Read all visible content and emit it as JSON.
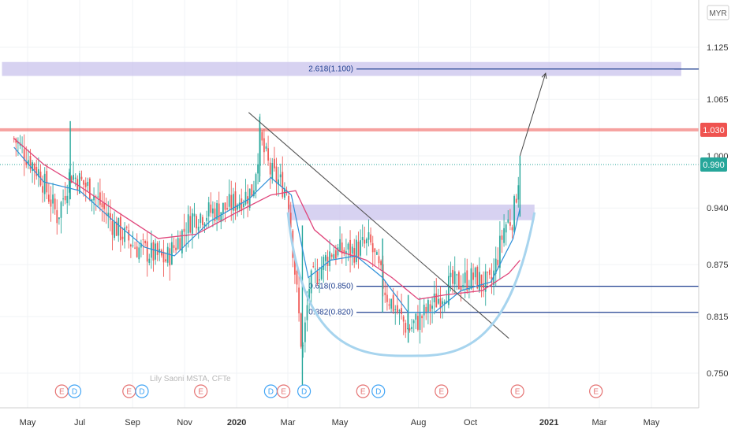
{
  "currency": "MYR",
  "watermark": "Lily Saoni MSTA, CFTe",
  "colors": {
    "up": "#26a69a",
    "down": "#ef5350",
    "ma_fast": "#2e90d9",
    "ma_slow": "#e0457b",
    "resistance": "#ef5350",
    "zone": "#c9c3ec",
    "fib_line": "#1f3f8f",
    "cup": "#a7d4ee",
    "trendline": "#555555",
    "price_badge": "#26a69a",
    "level_badge": "#ef5350"
  },
  "chart_data": {
    "type": "candlestick",
    "y_axis": {
      "ticks": [
        "1.125",
        "1.065",
        "1.000",
        "0.940",
        "0.875",
        "0.815",
        "0.750"
      ],
      "range": [
        0.72,
        1.17
      ]
    },
    "x_axis": {
      "ticks": [
        "May",
        "Jul",
        "Sep",
        "Nov",
        "2020",
        "Mar",
        "May",
        "Aug",
        "Oct",
        "2021",
        "Mar",
        "May"
      ],
      "bold": [
        "2020",
        "2021"
      ]
    },
    "resistance_level": {
      "label": "1.030",
      "value": 1.03
    },
    "last_price": {
      "label": "0.990",
      "value": 0.99
    },
    "fib_levels": [
      {
        "label": "2.618(1.100)",
        "value": 1.1
      },
      {
        "label": "0.618(0.850)",
        "value": 0.85
      },
      {
        "label": "0.382(0.820)",
        "value": 0.82
      }
    ],
    "events": [
      {
        "type": "E",
        "date": "2019-06-10"
      },
      {
        "type": "D",
        "date": "2019-06-25"
      },
      {
        "type": "E",
        "date": "2019-08-28"
      },
      {
        "type": "D",
        "date": "2019-09-12"
      },
      {
        "type": "E",
        "date": "2019-11-20"
      },
      {
        "type": "D",
        "date": "2020-02-10"
      },
      {
        "type": "E",
        "date": "2020-02-25"
      },
      {
        "type": "D",
        "date": "2020-03-20"
      },
      {
        "type": "E",
        "date": "2020-05-28"
      },
      {
        "type": "D",
        "date": "2020-06-15"
      },
      {
        "type": "E",
        "date": "2020-08-28"
      },
      {
        "type": "E",
        "date": "2020-11-25"
      },
      {
        "type": "E",
        "date": "2021-02-25"
      }
    ],
    "close_path": [
      [
        "2019-04-15",
        1.02
      ],
      [
        "2019-05-15",
        0.98
      ],
      [
        "2019-06-05",
        0.93
      ],
      [
        "2019-06-20",
        0.98
      ],
      [
        "2019-07-15",
        0.96
      ],
      [
        "2019-08-10",
        0.92
      ],
      [
        "2019-09-05",
        0.895
      ],
      [
        "2019-10-10",
        0.88
      ],
      [
        "2019-11-10",
        0.93
      ],
      [
        "2019-12-20",
        0.94
      ],
      [
        "2020-01-20",
        0.96
      ],
      [
        "2020-01-28",
        1.02
      ],
      [
        "2020-02-10",
        0.98
      ],
      [
        "2020-03-01",
        0.96
      ],
      [
        "2020-03-18",
        0.77
      ],
      [
        "2020-03-26",
        0.85
      ],
      [
        "2020-04-20",
        0.89
      ],
      [
        "2020-05-15",
        0.89
      ],
      [
        "2020-06-05",
        0.9
      ],
      [
        "2020-06-25",
        0.84
      ],
      [
        "2020-07-20",
        0.8
      ],
      [
        "2020-08-10",
        0.82
      ],
      [
        "2020-09-05",
        0.85
      ],
      [
        "2020-10-05",
        0.86
      ],
      [
        "2020-10-25",
        0.85
      ],
      [
        "2020-11-10",
        0.92
      ],
      [
        "2020-11-20",
        0.93
      ],
      [
        "2020-11-28",
        0.99
      ]
    ],
    "ma_fast": [
      [
        "2019-04-15",
        1.01
      ],
      [
        "2019-05-20",
        0.97
      ],
      [
        "2019-07-01",
        0.96
      ],
      [
        "2019-08-10",
        0.925
      ],
      [
        "2019-09-15",
        0.895
      ],
      [
        "2019-10-20",
        0.885
      ],
      [
        "2019-12-01",
        0.925
      ],
      [
        "2020-01-15",
        0.95
      ],
      [
        "2020-02-10",
        0.975
      ],
      [
        "2020-03-05",
        0.955
      ],
      [
        "2020-03-25",
        0.86
      ],
      [
        "2020-04-20",
        0.88
      ],
      [
        "2020-05-20",
        0.885
      ],
      [
        "2020-06-20",
        0.86
      ],
      [
        "2020-07-20",
        0.82
      ],
      [
        "2020-08-20",
        0.82
      ],
      [
        "2020-09-20",
        0.845
      ],
      [
        "2020-10-25",
        0.855
      ],
      [
        "2020-11-20",
        0.905
      ],
      [
        "2020-11-28",
        0.94
      ]
    ],
    "ma_slow": [
      [
        "2019-04-15",
        1.02
      ],
      [
        "2019-05-20",
        0.99
      ],
      [
        "2019-07-01",
        0.965
      ],
      [
        "2019-08-15",
        0.935
      ],
      [
        "2019-10-01",
        0.905
      ],
      [
        "2019-11-15",
        0.91
      ],
      [
        "2020-01-01",
        0.935
      ],
      [
        "2020-02-10",
        0.955
      ],
      [
        "2020-03-10",
        0.96
      ],
      [
        "2020-04-01",
        0.915
      ],
      [
        "2020-05-01",
        0.89
      ],
      [
        "2020-06-01",
        0.88
      ],
      [
        "2020-07-01",
        0.86
      ],
      [
        "2020-08-01",
        0.835
      ],
      [
        "2020-09-01",
        0.84
      ],
      [
        "2020-10-15",
        0.845
      ],
      [
        "2020-11-15",
        0.865
      ],
      [
        "2020-11-28",
        0.88
      ]
    ],
    "trendline": {
      "from": [
        "2020-01-15",
        1.05
      ],
      "to": [
        "2020-11-15",
        0.79
      ]
    },
    "cup": {
      "left": [
        "2020-03-01",
        0.935
      ],
      "bottom": [
        "2020-08-01",
        0.77
      ],
      "right": [
        "2020-12-15",
        0.935
      ]
    },
    "zones": [
      {
        "from": "2019-04-01",
        "to": "2021-06-05",
        "low": 1.092,
        "high": 1.108
      },
      {
        "from": "2020-03-01",
        "to": "2020-12-15",
        "low": 0.926,
        "high": 0.944
      }
    ],
    "projection_arrow": {
      "from": [
        "2020-11-28",
        1.0
      ],
      "to": [
        "2020-12-28",
        1.095
      ]
    }
  }
}
